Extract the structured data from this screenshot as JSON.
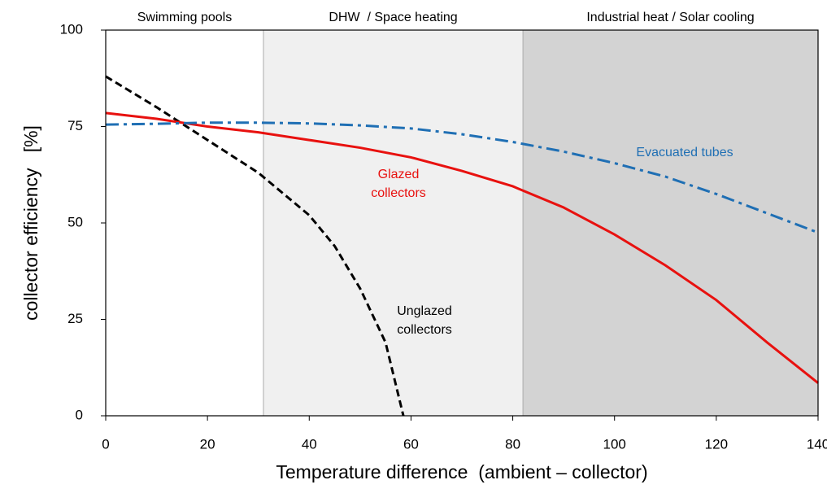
{
  "chart_data": {
    "type": "line",
    "y_label": "collector efficiency   [%]",
    "x_label": "Temperature difference  (ambient – collector)",
    "xlim": [
      0,
      140
    ],
    "ylim": [
      0,
      100
    ],
    "xticks": [
      0,
      20,
      40,
      60,
      80,
      100,
      120,
      140
    ],
    "yticks": [
      0,
      25,
      50,
      75,
      100
    ],
    "regions": [
      {
        "label": "Swimming pools",
        "from": 0,
        "to": 31,
        "color": "#ffffff"
      },
      {
        "label": "DHW  / Space heating",
        "from": 31,
        "to": 82,
        "color": "#f0f0f0"
      },
      {
        "label": "Industrial heat / Solar cooling",
        "from": 82,
        "to": 140,
        "color": "#d3d3d3"
      }
    ],
    "series": [
      {
        "name": "Unglazed collectors",
        "color": "#000000",
        "dash": "dashed",
        "x": [
          0,
          10,
          20,
          30,
          40,
          45,
          50,
          55,
          58.5
        ],
        "values": [
          88,
          80,
          71.5,
          63,
          52,
          44,
          33,
          19,
          0
        ]
      },
      {
        "name": "Glazed collectors",
        "color": "#e8110f",
        "dash": "solid",
        "x": [
          0,
          10,
          20,
          30,
          40,
          50,
          60,
          70,
          80,
          90,
          100,
          110,
          120,
          130,
          140
        ],
        "values": [
          78.5,
          77,
          75,
          73.5,
          71.5,
          69.5,
          67,
          63.5,
          59.5,
          54,
          47,
          39,
          30,
          19,
          8.5
        ]
      },
      {
        "name": "Evacuated tubes",
        "color": "#1f6fb4",
        "dash": "dashdot",
        "x": [
          0,
          10,
          20,
          30,
          40,
          50,
          60,
          70,
          80,
          90,
          100,
          110,
          120,
          130,
          140
        ],
        "values": [
          75.5,
          75.7,
          76,
          76,
          75.8,
          75.3,
          74.5,
          73,
          71,
          68.5,
          65.5,
          62,
          57.5,
          52.5,
          47.5
        ]
      }
    ],
    "annotations": [
      {
        "lines": [
          "Unglazed",
          "collectors"
        ],
        "color": "#000000"
      },
      {
        "lines": [
          "Glazed",
          "collectors"
        ],
        "color": "#e8110f"
      },
      {
        "lines": [
          "Evacuated tubes"
        ],
        "color": "#1f6fb4"
      }
    ]
  }
}
